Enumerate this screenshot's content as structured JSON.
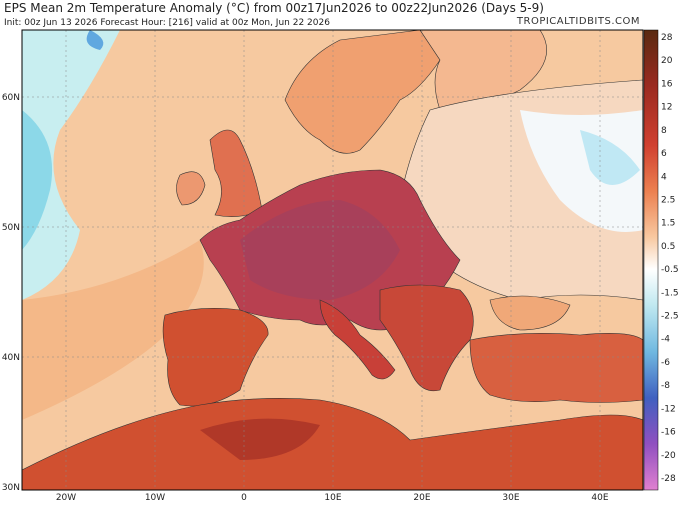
{
  "header": {
    "title": "EPS Mean 2m Temperature Anomaly (°C) from 00z17Jun2026 to 00z22Jun2026 (Days 5-9)",
    "subtitle": "Init: 00z Jun 13 2026   Forecast Hour: [216]   valid at 00z Mon, Jun 22 2026",
    "site": "TROPICALTIDBITS.COM"
  },
  "map": {
    "lat_labels": [
      "60N",
      "50N",
      "40N",
      "30N"
    ],
    "lon_labels": [
      "20W",
      "10W",
      "0",
      "10E",
      "20E",
      "30E",
      "40E"
    ]
  },
  "legend": {
    "labels": [
      28,
      20,
      16,
      12,
      8,
      6,
      4,
      2.5,
      1.5,
      0.5,
      -0.5,
      -1.5,
      -2.5,
      -4,
      -6,
      -8,
      -12,
      -16,
      -20,
      -28
    ]
  }
}
